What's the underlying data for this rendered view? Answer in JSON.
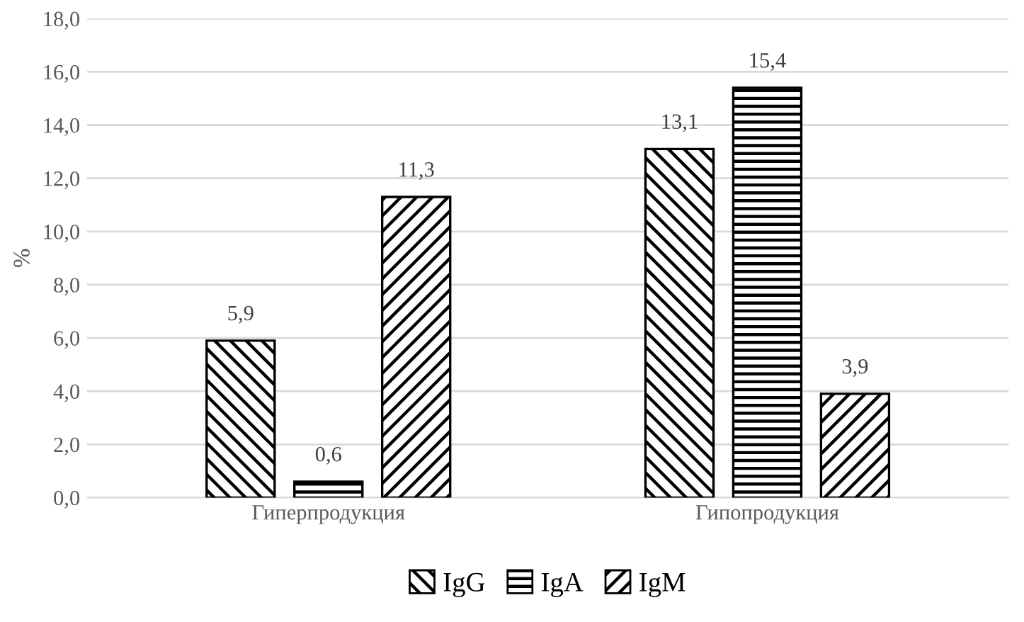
{
  "chart_data": {
    "type": "bar",
    "ylabel": "%",
    "categories": [
      "Гиперпродукция",
      "Гипопродукция"
    ],
    "series": [
      {
        "name": "IgG",
        "color": "#000000",
        "values": [
          5.9,
          13.1
        ],
        "value_labels": [
          "5,9",
          "13,1"
        ]
      },
      {
        "name": "IgA",
        "color": "#000000",
        "values": [
          0.6,
          15.4
        ],
        "value_labels": [
          "0,6",
          "15,4"
        ]
      },
      {
        "name": "IgM",
        "color": "#000000",
        "values": [
          11.3,
          3.9
        ],
        "value_labels": [
          "11,3",
          "3,9"
        ]
      }
    ],
    "ylim": [
      0,
      18
    ],
    "yticks": [
      {
        "value": 0,
        "label": "0,0"
      },
      {
        "value": 2,
        "label": "2,0"
      },
      {
        "value": 4,
        "label": "4,0"
      },
      {
        "value": 6,
        "label": "6,0"
      },
      {
        "value": 8,
        "label": "8,0"
      },
      {
        "value": 10,
        "label": "10,0"
      },
      {
        "value": 12,
        "label": "12,0"
      },
      {
        "value": 14,
        "label": "14,0"
      },
      {
        "value": 16,
        "label": "16,0"
      },
      {
        "value": 18,
        "label": "18,0"
      }
    ],
    "grid": "y",
    "legend": "bottom"
  }
}
